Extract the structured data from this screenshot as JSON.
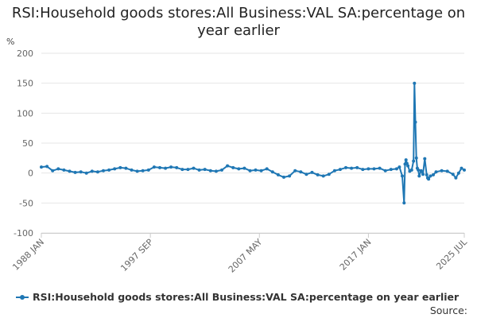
{
  "chart_data": {
    "type": "line",
    "title": "RSI:Household goods stores:All Business:VAL SA:percentage on year earlier",
    "ylabel": "%",
    "xlabel": "",
    "ylim": [
      -100,
      200
    ],
    "yticks": [
      200,
      150,
      100,
      50,
      0,
      -50,
      -100
    ],
    "xlim": [
      "1988 JAN",
      "2025 JUL"
    ],
    "xticks": [
      "1988 JAN",
      "1997 SEP",
      "2007 MAY",
      "2017 JAN",
      "2025 JUL"
    ],
    "grid": true,
    "legend_position": "bottom",
    "series": [
      {
        "name": "RSI:Household goods stores:All Business:VAL SA:percentage on year earlier",
        "color": "#1f77b4",
        "x": [
          "1988-01",
          "1988-07",
          "1989-01",
          "1989-07",
          "1990-01",
          "1990-07",
          "1991-01",
          "1991-07",
          "1992-01",
          "1992-07",
          "1993-01",
          "1993-07",
          "1994-01",
          "1994-07",
          "1995-01",
          "1995-07",
          "1996-01",
          "1996-07",
          "1997-01",
          "1997-07",
          "1998-01",
          "1998-07",
          "1999-01",
          "1999-07",
          "2000-01",
          "2000-07",
          "2001-01",
          "2001-07",
          "2002-01",
          "2002-07",
          "2003-01",
          "2003-07",
          "2004-01",
          "2004-07",
          "2005-01",
          "2005-07",
          "2006-01",
          "2006-07",
          "2007-01",
          "2007-07",
          "2008-01",
          "2008-07",
          "2009-01",
          "2009-07",
          "2010-01",
          "2010-07",
          "2011-01",
          "2011-07",
          "2012-01",
          "2012-07",
          "2013-01",
          "2013-07",
          "2014-01",
          "2014-07",
          "2015-01",
          "2015-07",
          "2016-01",
          "2016-07",
          "2017-01",
          "2017-07",
          "2018-01",
          "2018-07",
          "2019-01",
          "2019-07",
          "2019-10",
          "2020-01",
          "2020-03",
          "2020-04",
          "2020-05",
          "2020-06",
          "2020-07",
          "2020-09",
          "2020-11",
          "2021-01",
          "2021-02",
          "2021-03",
          "2021-04",
          "2021-05",
          "2021-06",
          "2021-07",
          "2021-09",
          "2021-11",
          "2022-01",
          "2022-03",
          "2022-04",
          "2022-05",
          "2022-07",
          "2022-10",
          "2023-01",
          "2023-07",
          "2024-01",
          "2024-07",
          "2024-10",
          "2025-01",
          "2025-04",
          "2025-07"
        ],
        "values": [
          10,
          11,
          4,
          7,
          5,
          3,
          1,
          2,
          0,
          3,
          2,
          4,
          5,
          7,
          9,
          8,
          5,
          3,
          4,
          5,
          10,
          9,
          8,
          10,
          9,
          6,
          6,
          8,
          5,
          6,
          4,
          3,
          5,
          12,
          9,
          7,
          8,
          4,
          5,
          4,
          7,
          2,
          -3,
          -7,
          -5,
          4,
          2,
          -2,
          1,
          -3,
          -5,
          -2,
          4,
          6,
          9,
          8,
          9,
          6,
          7,
          7,
          8,
          4,
          6,
          7,
          10,
          -5,
          -50,
          15,
          22,
          16,
          12,
          3,
          5,
          20,
          150,
          85,
          25,
          8,
          5,
          -5,
          4,
          -2,
          24,
          -3,
          -8,
          -10,
          -5,
          -3,
          2,
          4,
          3,
          -2,
          -8,
          0,
          8,
          5
        ]
      }
    ]
  },
  "source_label": "Source:"
}
